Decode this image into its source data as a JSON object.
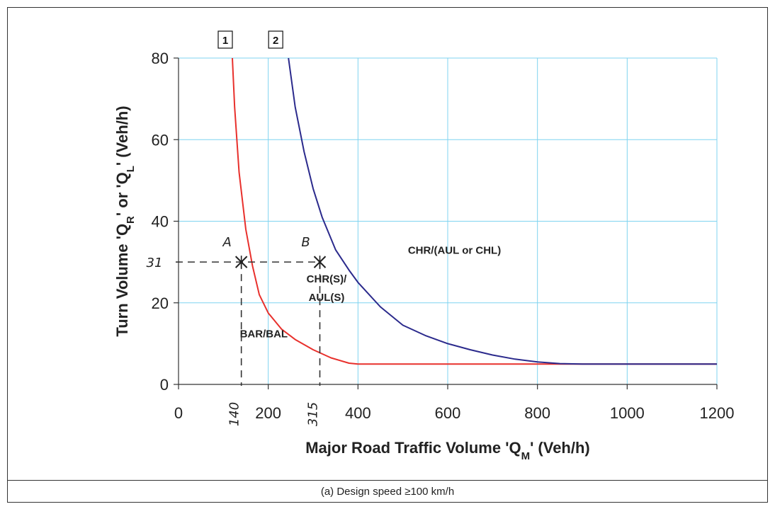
{
  "caption": "(a) Design speed ≥100 km/h",
  "chart_data": {
    "type": "line",
    "xlabel": "Major Road Traffic Volume 'Q",
    "xlabel_sub": "M",
    "xlabel_end": "' (Veh/h)",
    "ylabel": "Turn Volume 'Q",
    "ylabel_sub": "R",
    "ylabel_end": "' or 'Q",
    "ylabel_sub2": "L",
    "ylabel_tail": "' (Veh/h)",
    "xlim": [
      0,
      1200
    ],
    "ylim": [
      0,
      80
    ],
    "xticks": [
      0,
      200,
      400,
      600,
      800,
      1000,
      1200
    ],
    "yticks": [
      0,
      20,
      40,
      60,
      80
    ],
    "grid": true,
    "grid_color": "#7fd3f0",
    "series": [
      {
        "name": "1",
        "color": "#e8302c",
        "x": [
          120,
          125,
          135,
          150,
          165,
          180,
          200,
          230,
          260,
          300,
          340,
          380,
          400,
          500,
          700,
          1000,
          1200
        ],
        "y": [
          80,
          68,
          52,
          38,
          29,
          22,
          17.5,
          13.5,
          11,
          8.5,
          6.5,
          5.2,
          5,
          5,
          5,
          5,
          5
        ]
      },
      {
        "name": "2",
        "color": "#2b2a8c",
        "x": [
          245,
          260,
          280,
          300,
          320,
          350,
          380,
          400,
          450,
          500,
          550,
          600,
          650,
          700,
          750,
          800,
          850,
          900,
          1000,
          1200
        ],
        "y": [
          80,
          68,
          57,
          48,
          41,
          33,
          28,
          25,
          19,
          14.5,
          12,
          10,
          8.5,
          7.2,
          6.2,
          5.5,
          5.1,
          5,
          5,
          5
        ]
      }
    ],
    "curve_labels": [
      "1",
      "2"
    ],
    "regions": [
      {
        "text": "BAR/BAL",
        "x": 190,
        "y": 11.5
      },
      {
        "text": "CHR(S)/",
        "x": 330,
        "y": 25
      },
      {
        "text": "AUL(S)",
        "x": 330,
        "y": 20.5
      },
      {
        "text": "CHR/(AUL or CHL)",
        "x": 615,
        "y": 32
      }
    ],
    "annotations": {
      "points": [
        {
          "label": "A",
          "x": 140,
          "y": 30
        },
        {
          "label": "B",
          "x": 315,
          "y": 30
        }
      ],
      "y_mark": "31",
      "x_marks": [
        "140",
        "315"
      ]
    }
  }
}
